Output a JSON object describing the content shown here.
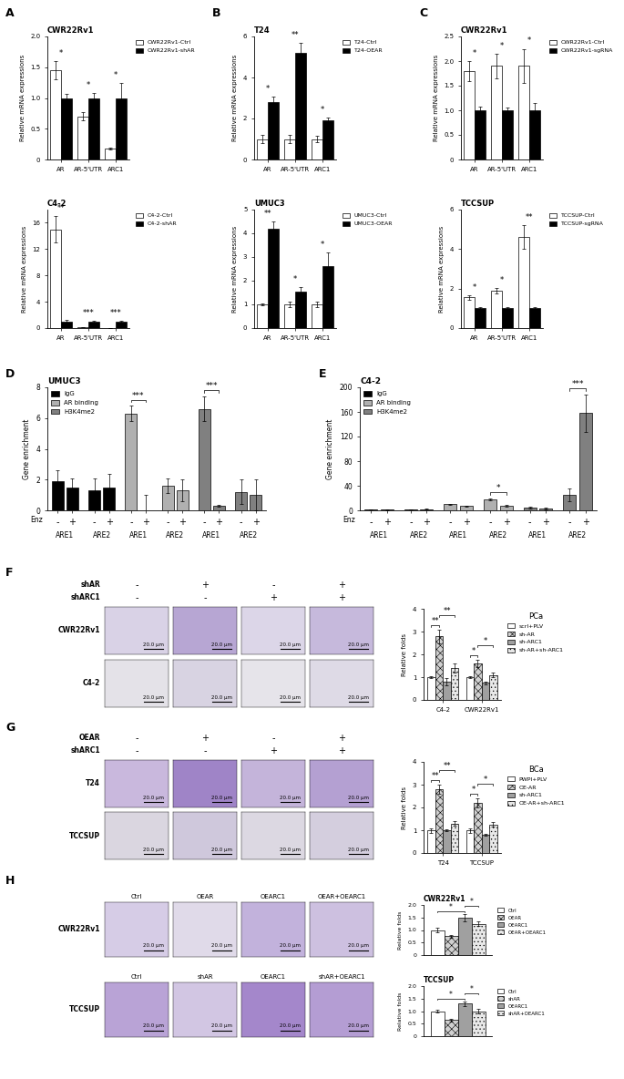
{
  "panel_labels": [
    "A",
    "B",
    "C",
    "D",
    "E",
    "F",
    "G",
    "H"
  ],
  "chart_data": [
    {
      "type": "bar",
      "title": "CWR22Rv1",
      "ylabel": "Relative mRNA expressions",
      "categories": [
        "AR",
        "AR-5'UTR",
        "ARC1"
      ],
      "series": [
        {
          "name": "CWR22Rv1-Ctrl",
          "color": "#ffffff",
          "values": [
            1.45,
            0.7,
            0.18
          ],
          "errors": [
            0.15,
            0.07,
            0.02
          ]
        },
        {
          "name": "CWR22Rv1-shAR",
          "color": "#000000",
          "values": [
            1.0,
            1.0,
            1.0
          ],
          "errors": [
            0.07,
            0.08,
            0.25
          ]
        }
      ],
      "annotations": [
        "*",
        "*",
        "*"
      ],
      "ylim": [
        0,
        2.0
      ],
      "yticks": [
        0,
        0.5,
        1.0,
        1.5,
        2.0
      ],
      "legend": "upper left"
    },
    {
      "type": "bar",
      "title": "C4-2",
      "ylabel": "Relative mRNA expressions",
      "categories": [
        "AR",
        "AR-5'UTR",
        "ARC1"
      ],
      "series": [
        {
          "name": "C4-2-Ctrl",
          "color": "#ffffff",
          "values": [
            15.0,
            0.1,
            0.05
          ],
          "errors": [
            2.0,
            0.02,
            0.01
          ]
        },
        {
          "name": "C4-2-shAR",
          "color": "#000000",
          "values": [
            1.0,
            1.0,
            1.0
          ],
          "errors": [
            0.3,
            0.1,
            0.1
          ]
        }
      ],
      "annotations": [
        "**",
        "***",
        "***"
      ],
      "ylim": [
        0,
        18
      ],
      "yticks": [
        0,
        4,
        8,
        12,
        16
      ],
      "legend": "upper left"
    },
    {
      "type": "bar",
      "title": "T24",
      "ylabel": "Relative mRNA expressions",
      "categories": [
        "AR",
        "AR-5'UTR",
        "ARC1"
      ],
      "series": [
        {
          "name": "T24-Ctrl",
          "color": "#ffffff",
          "values": [
            1.0,
            1.0,
            1.0
          ],
          "errors": [
            0.2,
            0.2,
            0.15
          ]
        },
        {
          "name": "T24-OEAR",
          "color": "#000000",
          "values": [
            2.8,
            5.2,
            1.9
          ],
          "errors": [
            0.25,
            0.5,
            0.15
          ]
        }
      ],
      "annotations": [
        "*",
        "**",
        "*"
      ],
      "ylim": [
        0,
        6
      ],
      "yticks": [
        0,
        2,
        4,
        6
      ],
      "legend": "upper left"
    },
    {
      "type": "bar",
      "title": "UMUC3",
      "ylabel": "Relative mRNA expressions",
      "categories": [
        "AR",
        "AR-5'UTR",
        "ARC1"
      ],
      "series": [
        {
          "name": "UMUC3-Ctrl",
          "color": "#ffffff",
          "values": [
            1.0,
            1.0,
            1.0
          ],
          "errors": [
            0.05,
            0.1,
            0.1
          ]
        },
        {
          "name": "UMUC3-OEAR",
          "color": "#000000",
          "values": [
            4.2,
            1.55,
            2.6
          ],
          "errors": [
            0.3,
            0.2,
            0.6
          ]
        }
      ],
      "annotations": [
        "**",
        "*",
        "*"
      ],
      "ylim": [
        0,
        5
      ],
      "yticks": [
        0,
        1,
        2,
        3,
        4,
        5
      ],
      "legend": "upper left"
    },
    {
      "type": "bar",
      "title": "CWR22Rv1",
      "ylabel": "Relative mRNA expressions",
      "categories": [
        "AR",
        "AR-5'UTR",
        "ARC1"
      ],
      "series": [
        {
          "name": "CWR22Rv1-Ctrl",
          "color": "#ffffff",
          "values": [
            1.8,
            1.9,
            1.9
          ],
          "errors": [
            0.2,
            0.25,
            0.35
          ]
        },
        {
          "name": "CWR22Rv1-sgRNA",
          "color": "#000000",
          "values": [
            1.0,
            1.0,
            1.0
          ],
          "errors": [
            0.08,
            0.05,
            0.15
          ]
        }
      ],
      "annotations": [
        "*",
        "*",
        "*"
      ],
      "ylim": [
        0,
        2.5
      ],
      "yticks": [
        0,
        0.5,
        1.0,
        1.5,
        2.0,
        2.5
      ],
      "legend": "upper left"
    },
    {
      "type": "bar",
      "title": "TCCSUP",
      "ylabel": "Relative mRNA expressions",
      "categories": [
        "AR",
        "AR-5'UTR",
        "ARC1"
      ],
      "series": [
        {
          "name": "TCCSUP-Ctrl",
          "color": "#ffffff",
          "values": [
            1.55,
            1.9,
            4.6
          ],
          "errors": [
            0.1,
            0.15,
            0.6
          ]
        },
        {
          "name": "TCCSUP-sgRNA",
          "color": "#000000",
          "values": [
            1.0,
            1.0,
            1.0
          ],
          "errors": [
            0.05,
            0.05,
            0.05
          ]
        }
      ],
      "annotations": [
        "*",
        "*",
        "**"
      ],
      "ylim": [
        0,
        6
      ],
      "yticks": [
        0,
        2,
        4,
        6
      ],
      "legend": "upper left"
    },
    {
      "type": "bar",
      "title": "UMUC3",
      "ylabel": "Gene enrichment",
      "xlabel": "Enz",
      "categories": [
        "-",
        "+",
        "-",
        "+",
        "-",
        "+",
        "-",
        "+",
        "-",
        "+",
        "-",
        "+"
      ],
      "groups": [
        "ARE1",
        "ARE2",
        "ARE1",
        "ARE2",
        "ARE1",
        "ARE2"
      ],
      "series": [
        {
          "name": "IgG",
          "color": "#000000",
          "values": [
            1.9,
            1.5,
            1.3,
            1.5,
            null,
            null,
            null,
            null,
            null,
            null,
            null,
            null
          ],
          "errors": [
            0.7,
            0.6,
            0.8,
            0.9,
            null,
            null,
            null,
            null,
            null,
            null,
            null,
            null
          ]
        },
        {
          "name": "AR binding",
          "color": "#b0b0b0",
          "values": [
            null,
            null,
            null,
            null,
            6.3,
            0,
            1.6,
            1.3,
            null,
            null,
            null,
            null
          ],
          "errors": [
            null,
            null,
            null,
            null,
            0.5,
            1.0,
            0.5,
            0.7,
            null,
            null,
            null,
            null
          ]
        },
        {
          "name": "H3K4me2",
          "color": "#808080",
          "values": [
            null,
            null,
            null,
            null,
            null,
            null,
            null,
            null,
            6.6,
            0.3,
            1.2,
            1.0
          ],
          "errors": [
            null,
            null,
            null,
            null,
            null,
            null,
            null,
            null,
            0.8,
            0.05,
            0.8,
            1.0
          ]
        }
      ],
      "comparisons": [
        {
          "from": 4,
          "to": 5,
          "label": "***"
        },
        {
          "from": 8,
          "to": 9,
          "label": "***"
        }
      ],
      "ylim": [
        0,
        8
      ],
      "yticks": [
        0,
        2,
        4,
        6,
        8
      ],
      "legend": "upper left"
    },
    {
      "type": "bar",
      "title": "C4-2",
      "ylabel": "Gene enrichment",
      "xlabel": "Enz",
      "categories": [
        "-",
        "+",
        "-",
        "+",
        "-",
        "+",
        "-",
        "+",
        "-",
        "+",
        "-",
        "+"
      ],
      "groups": [
        "ARE1",
        "ARE2",
        "ARE1",
        "ARE2",
        "ARE1",
        "ARE2"
      ],
      "series": [
        {
          "name": "IgG",
          "color": "#000000",
          "values": [
            1.5,
            1.0,
            1.5,
            2.0,
            null,
            null,
            null,
            null,
            null,
            null,
            null,
            null
          ],
          "errors": [
            0.5,
            0.5,
            0.5,
            0.5,
            null,
            null,
            null,
            null,
            null,
            null,
            null,
            null
          ]
        },
        {
          "name": "AR binding",
          "color": "#b0b0b0",
          "values": [
            null,
            null,
            null,
            null,
            10,
            7,
            18,
            7.5,
            null,
            null,
            null,
            null
          ],
          "errors": [
            null,
            null,
            null,
            null,
            1.0,
            1.0,
            1.0,
            1.0,
            null,
            null,
            null,
            null
          ]
        },
        {
          "name": "H3K4me2",
          "color": "#808080",
          "values": [
            null,
            null,
            null,
            null,
            null,
            null,
            null,
            null,
            4.5,
            2.5,
            25,
            158
          ],
          "errors": [
            null,
            null,
            null,
            null,
            null,
            null,
            null,
            null,
            1.5,
            1.5,
            10,
            30
          ]
        }
      ],
      "comparisons": [
        {
          "from": 6,
          "to": 7,
          "label": "*"
        },
        {
          "from": 10,
          "to": 11,
          "label": "***"
        }
      ],
      "ylim": [
        0,
        200
      ],
      "yticks": [
        0,
        40,
        80,
        120,
        160,
        200
      ],
      "legend": "upper left"
    },
    {
      "type": "bar",
      "title": "PCa",
      "ylabel": "Relative folds",
      "categories": [
        "C4-2",
        "CWR22Rv1"
      ],
      "series": [
        {
          "name": "scrl+PLV",
          "color": "#ffffff",
          "values": [
            1.0,
            1.0
          ],
          "errors": [
            0.05,
            0.05
          ]
        },
        {
          "name": "sh-AR",
          "color": "#d0d0d0",
          "values": [
            2.8,
            1.6
          ],
          "errors": [
            0.3,
            0.15
          ]
        },
        {
          "name": "sh-ARC1",
          "color": "#a0a0a0",
          "values": [
            0.8,
            0.75
          ],
          "errors": [
            0.15,
            0.05
          ]
        },
        {
          "name": "sh-AR+sh-ARC1",
          "color": "#e8e8e8",
          "values": [
            1.4,
            1.1
          ],
          "errors": [
            0.2,
            0.1
          ]
        }
      ],
      "comparisons": [
        {
          "category": 0,
          "from": 0,
          "to": 1,
          "label": "**"
        },
        {
          "category": 0,
          "from": 1,
          "to": 3,
          "label": "**"
        },
        {
          "category": 1,
          "from": 0,
          "to": 1,
          "label": "*"
        },
        {
          "category": 1,
          "from": 1,
          "to": 3,
          "label": "*"
        }
      ],
      "ylim": [
        0,
        4
      ],
      "yticks": [
        0,
        1,
        2,
        3,
        4
      ],
      "legend": "upper left"
    },
    {
      "type": "bar",
      "title": "BCa",
      "ylabel": "Relative folds",
      "categories": [
        "T24",
        "TCCSUP"
      ],
      "series": [
        {
          "name": "PWPI+PLV",
          "color": "#ffffff",
          "values": [
            1.0,
            1.0
          ],
          "errors": [
            0.1,
            0.1
          ]
        },
        {
          "name": "OE-AR",
          "color": "#d0d0d0",
          "values": [
            2.8,
            2.2
          ],
          "errors": [
            0.2,
            0.2
          ]
        },
        {
          "name": "sh-ARC1",
          "color": "#a0a0a0",
          "values": [
            1.0,
            0.8
          ],
          "errors": [
            0.05,
            0.05
          ]
        },
        {
          "name": "OE-AR+sh-ARC1",
          "color": "#e8e8e8",
          "values": [
            1.3,
            1.25
          ],
          "errors": [
            0.1,
            0.1
          ]
        }
      ],
      "comparisons": [
        {
          "category": 0,
          "from": 0,
          "to": 1,
          "label": "**"
        },
        {
          "category": 0,
          "from": 1,
          "to": 3,
          "label": "**"
        },
        {
          "category": 1,
          "from": 0,
          "to": 1,
          "label": "*"
        },
        {
          "category": 1,
          "from": 1,
          "to": 3,
          "label": "*"
        }
      ],
      "ylim": [
        0,
        4
      ],
      "yticks": [
        0,
        1,
        2,
        3,
        4
      ],
      "legend": "upper left"
    },
    {
      "type": "bar",
      "title": "CWR22Rv1",
      "ylabel": "Relative folds",
      "categories": [
        null
      ],
      "series": [
        {
          "name": "Ctrl",
          "color": "#ffffff",
          "values": [
            1.0
          ],
          "errors": [
            0.1
          ]
        },
        {
          "name": "OEAR",
          "color": "#d0d0d0",
          "values": [
            0.75
          ],
          "errors": [
            0.05
          ]
        },
        {
          "name": "OEARC1",
          "color": "#a0a0a0",
          "values": [
            1.5
          ],
          "errors": [
            0.15
          ]
        },
        {
          "name": "OEAR+OEARC1",
          "color": "#e8e8e8",
          "values": [
            1.25
          ],
          "errors": [
            0.08
          ]
        }
      ],
      "comparisons": [
        {
          "category": 0,
          "from": 0,
          "to": 2,
          "label": "*"
        },
        {
          "category": 0,
          "from": 2,
          "to": 3,
          "label": "*"
        }
      ],
      "ylim": [
        0,
        2.0
      ],
      "yticks": [
        0,
        0.5,
        1.0,
        1.5,
        2.0
      ],
      "legend": "upper left"
    },
    {
      "type": "bar",
      "title": "TCCSUP",
      "ylabel": "Relative folds",
      "categories": [
        null
      ],
      "series": [
        {
          "name": "Ctrl",
          "color": "#ffffff",
          "values": [
            1.0
          ],
          "errors": [
            0.05
          ]
        },
        {
          "name": "shAR",
          "color": "#d0d0d0",
          "values": [
            0.65
          ],
          "errors": [
            0.05
          ]
        },
        {
          "name": "OEARC1",
          "color": "#a0a0a0",
          "values": [
            1.3
          ],
          "errors": [
            0.1
          ]
        },
        {
          "name": "shAR+OEARC1",
          "color": "#e8e8e8",
          "values": [
            1.0
          ],
          "errors": [
            0.1
          ]
        }
      ],
      "comparisons": [
        {
          "category": 0,
          "from": 0,
          "to": 2,
          "label": "*"
        },
        {
          "category": 0,
          "from": 2,
          "to": 3,
          "label": "*"
        }
      ],
      "ylim": [
        0,
        2.0
      ],
      "yticks": [
        0,
        0.5,
        1.0,
        1.5,
        2.0
      ],
      "legend": "upper left"
    }
  ],
  "image_panels": [
    {
      "scale_bar": "20.0 μm",
      "conditions": [
        {
          "name": "shAR",
          "values": [
            "-",
            "+",
            "-",
            "+"
          ]
        },
        {
          "name": "shARC1",
          "values": [
            "-",
            "-",
            "+",
            "+"
          ]
        }
      ],
      "rows": [
        {
          "name": "CWR22Rv1",
          "colors": [
            "#d9d2e6",
            "#b7a6d3",
            "#dcd6e8",
            "#c6b9dc"
          ]
        },
        {
          "name": "C4-2",
          "colors": [
            "#e4e2e8",
            "#d8d3e2",
            "#e6e4ea",
            "#dedae6"
          ]
        }
      ]
    },
    {
      "scale_bar": "20.0 μm",
      "conditions": [
        {
          "name": "OEAR",
          "values": [
            "-",
            "+",
            "-",
            "+"
          ]
        },
        {
          "name": "shARC1",
          "values": [
            "-",
            "-",
            "+",
            "+"
          ]
        }
      ],
      "rows": [
        {
          "name": "T24",
          "colors": [
            "#c9b8dd",
            "#9f84c7",
            "#c4b4da",
            "#b4a0d2"
          ]
        },
        {
          "name": "TCCSUP",
          "colors": [
            "#dad6e0",
            "#cfc8dc",
            "#dcd8e2",
            "#d4cede"
          ]
        }
      ]
    },
    {
      "scale_bar": "20.0 μm",
      "rows": [
        {
          "name": "CWR22Rv1",
          "column_titles": [
            "Ctrl",
            "OEAR",
            "OEARC1",
            "OEAR+OEARC1"
          ],
          "colors": [
            "#d6cce6",
            "#e0dae9",
            "#c2b2dc",
            "#cdc0e0"
          ]
        },
        {
          "name": "TCCSUP",
          "column_titles": [
            "Ctrl",
            "shAR",
            "OEARC1",
            "shAR+OEARC1"
          ],
          "colors": [
            "#b9a3d6",
            "#d2c6e3",
            "#a487cb",
            "#b49dd3"
          ]
        }
      ]
    }
  ]
}
